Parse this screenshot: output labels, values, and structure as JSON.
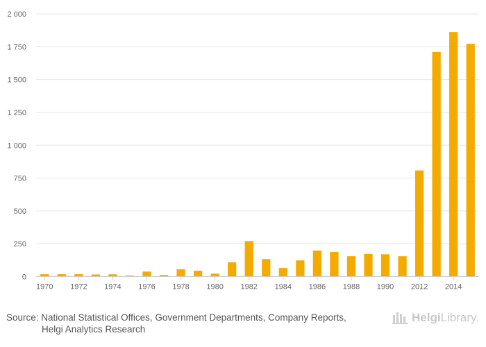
{
  "chart_data": {
    "type": "bar",
    "title": "",
    "xlabel": "",
    "ylabel": "",
    "ylim": [
      0,
      2000
    ],
    "yticks": [
      0,
      250,
      500,
      750,
      1000,
      1250,
      1500,
      1750,
      2000
    ],
    "ytick_labels": [
      "0",
      "250",
      "500",
      "750",
      "1 000",
      "1 250",
      "1 500",
      "1 750",
      "2 000"
    ],
    "grid": true,
    "legend": "none",
    "categories": [
      "1970",
      "1971",
      "1972",
      "1973",
      "1974",
      "1975",
      "1976",
      "1977",
      "1978",
      "1979",
      "1980",
      "1981",
      "1982",
      "1983",
      "1984",
      "1985",
      "1986",
      "1987",
      "1988",
      "1989",
      "1990",
      "1991",
      "2012",
      "2013",
      "2014",
      "2015"
    ],
    "xtick_labels": [
      "1970",
      "",
      "1972",
      "",
      "1974",
      "",
      "1976",
      "",
      "1978",
      "",
      "1980",
      "",
      "1982",
      "",
      "1984",
      "",
      "1986",
      "",
      "1988",
      "",
      "1990",
      "",
      "2012",
      "",
      "2014",
      ""
    ],
    "values": [
      18,
      18,
      18,
      16,
      17,
      8,
      38,
      12,
      55,
      44,
      22,
      108,
      270,
      133,
      65,
      123,
      198,
      188,
      155,
      173,
      170,
      155,
      808,
      1710,
      1862,
      1772
    ],
    "bar_color": "#f5aa00"
  },
  "footer": {
    "source_line1": "Source: National Statistical Offices, Government Departments, Company Reports,",
    "source_line2": "Helgi Analytics Research",
    "brand_bold": "Helgi",
    "brand_rest": "Library."
  }
}
